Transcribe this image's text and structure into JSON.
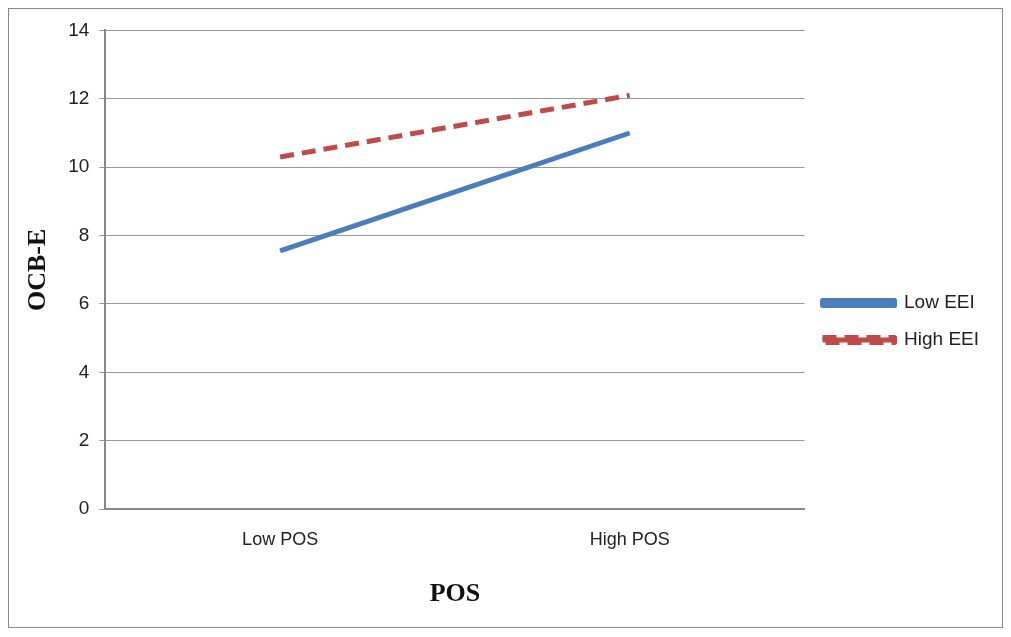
{
  "chart_data": {
    "type": "line",
    "xlabel": "POS",
    "ylabel": "OCB-E",
    "categories": [
      "Low POS",
      "High POS"
    ],
    "series": [
      {
        "name": "Low EEI",
        "color": "#4a7ebb",
        "values": [
          7.55,
          11.0
        ],
        "line_style": "solid"
      },
      {
        "name": "High EEI",
        "color": "#be4b48",
        "values": [
          10.3,
          12.1
        ],
        "line_style": "dashed"
      }
    ],
    "ylim": [
      0,
      14
    ],
    "yticks": [
      0,
      2,
      4,
      6,
      8,
      10,
      12,
      14
    ],
    "grid": "y",
    "legend": "right",
    "marker": "none"
  }
}
